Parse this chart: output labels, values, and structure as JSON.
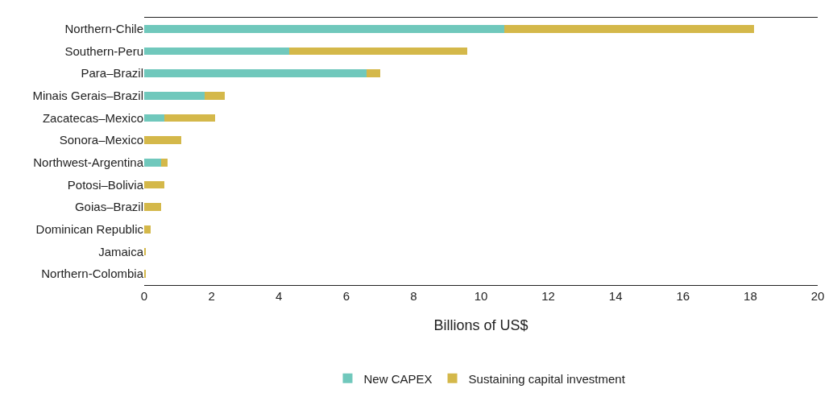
{
  "chart_data": {
    "type": "bar",
    "orientation": "horizontal",
    "stacked": true,
    "xlabel": "Billions of US$",
    "categories": [
      "Northern-Chile",
      "Southern-Peru",
      "Para–Brazil",
      "Minais Gerais–Brazil",
      "Zacatecas–Mexico",
      "Sonora–Mexico",
      "Northwest-Argentina",
      "Potosi–Bolivia",
      "Goias–Brazil",
      "Dominican Republic",
      "Jamaica",
      "Northern-Colombia"
    ],
    "series": [
      {
        "name": "New CAPEX",
        "color": "#70c8bc",
        "values": [
          10.7,
          4.3,
          6.6,
          1.8,
          0.6,
          0,
          0.5,
          0,
          0,
          0,
          0,
          0
        ]
      },
      {
        "name": "Sustaining capital investment",
        "color": "#d4b84a",
        "values": [
          7.4,
          5.3,
          0.4,
          0.6,
          1.5,
          1.1,
          0.2,
          0.6,
          0.5,
          0.2,
          0.05,
          0.05
        ]
      }
    ],
    "xlim": [
      0,
      20
    ],
    "xticks": [
      0,
      2,
      4,
      6,
      8,
      10,
      12,
      14,
      16,
      18,
      20
    ],
    "grid": false,
    "legend": "bottom"
  }
}
